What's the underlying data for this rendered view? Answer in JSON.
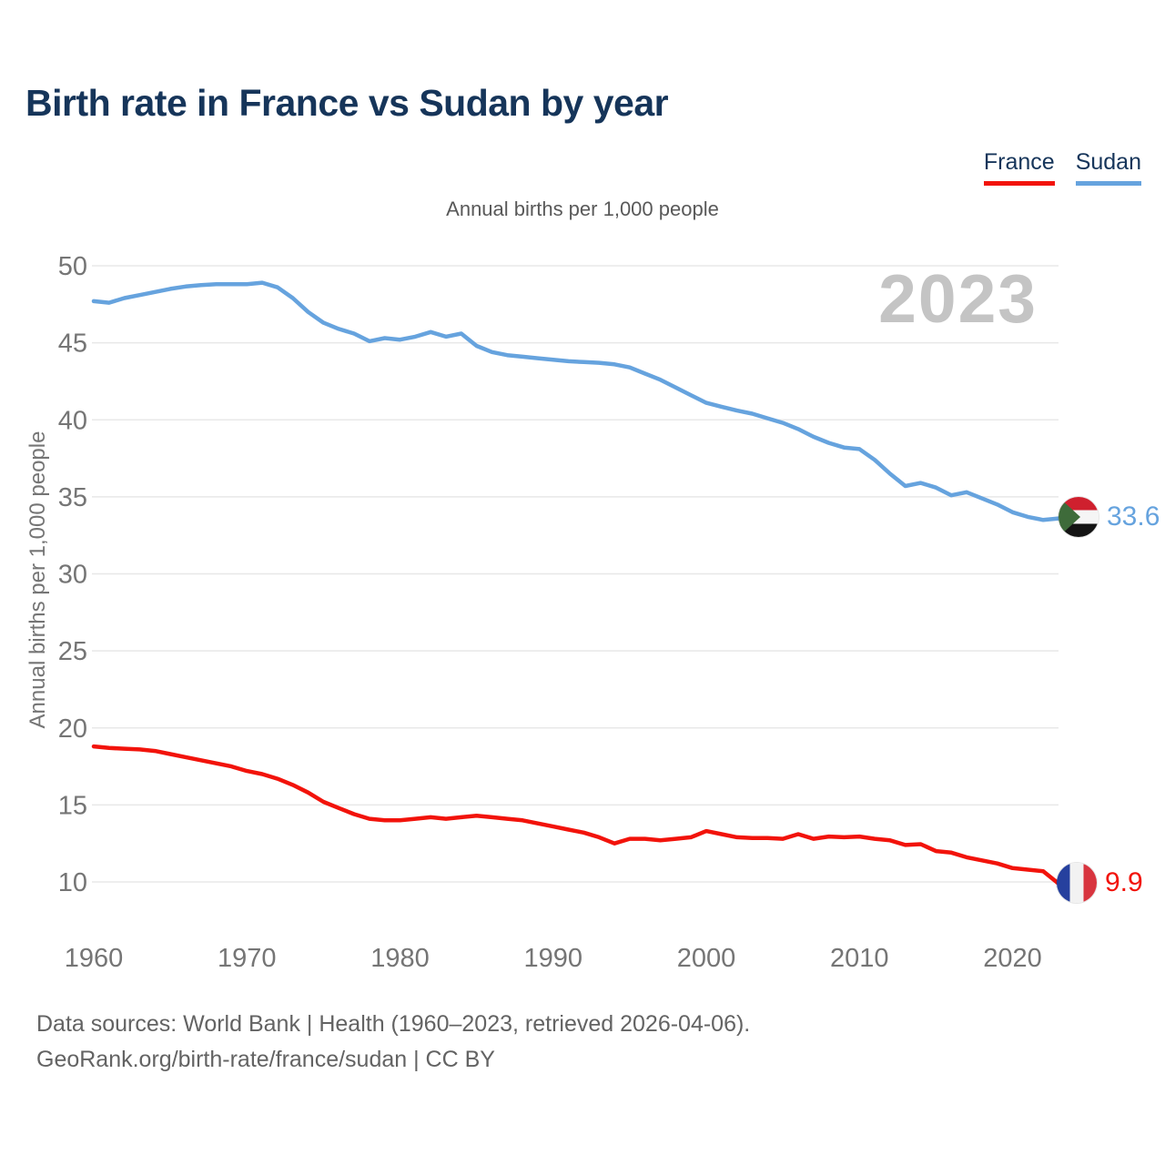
{
  "header": {
    "title": "Birth rate in France vs Sudan by year"
  },
  "legend": [
    {
      "label": "France",
      "color": "#f2130b"
    },
    {
      "label": "Sudan",
      "color": "#66a3de"
    }
  ],
  "subtitle": "Annual births per 1,000 people",
  "watermark": "2023",
  "colors": {
    "title_text": "#16355a",
    "axis_text": "#757575",
    "gridline": "#e8e8e8",
    "watermark": "#c4c4c4",
    "france_red": "#f2130b",
    "sudan_blue": "#66a3de"
  },
  "chart_data": {
    "type": "line",
    "title": "Birth rate in France vs Sudan by year",
    "subtitle": "Annual births per 1,000 people",
    "xlabel": "",
    "ylabel": "Annual births per 1,000 people",
    "xlim": [
      1960,
      2023
    ],
    "ylim": [
      10,
      50
    ],
    "grid": "horizontal",
    "legend_position": "top-right",
    "x_ticks": [
      1960,
      1970,
      1980,
      1990,
      2000,
      2010,
      2020
    ],
    "y_ticks": [
      10,
      15,
      20,
      25,
      30,
      35,
      40,
      45,
      50
    ],
    "x": [
      1960,
      1961,
      1962,
      1963,
      1964,
      1965,
      1966,
      1967,
      1968,
      1969,
      1970,
      1971,
      1972,
      1973,
      1974,
      1975,
      1976,
      1977,
      1978,
      1979,
      1980,
      1981,
      1982,
      1983,
      1984,
      1985,
      1986,
      1987,
      1988,
      1989,
      1990,
      1991,
      1992,
      1993,
      1994,
      1995,
      1996,
      1997,
      1998,
      1999,
      2000,
      2001,
      2002,
      2003,
      2004,
      2005,
      2006,
      2007,
      2008,
      2009,
      2010,
      2011,
      2012,
      2013,
      2014,
      2015,
      2016,
      2017,
      2018,
      2019,
      2020,
      2021,
      2022,
      2023
    ],
    "series": [
      {
        "name": "France",
        "color": "#f2130b",
        "end_label": "9.9",
        "end_year": 2023,
        "values": [
          18.8,
          18.7,
          18.65,
          18.6,
          18.5,
          18.3,
          18.1,
          17.9,
          17.7,
          17.5,
          17.2,
          17.0,
          16.7,
          16.3,
          15.8,
          15.2,
          14.8,
          14.4,
          14.1,
          14.0,
          14.0,
          14.1,
          14.2,
          14.1,
          14.2,
          14.3,
          14.2,
          14.1,
          14.0,
          13.8,
          13.6,
          13.4,
          13.2,
          12.9,
          12.5,
          12.8,
          12.8,
          12.7,
          12.8,
          12.9,
          13.3,
          13.1,
          12.9,
          12.85,
          12.85,
          12.8,
          13.1,
          12.8,
          12.95,
          12.9,
          12.95,
          12.8,
          12.7,
          12.4,
          12.45,
          12.0,
          11.9,
          11.6,
          11.4,
          11.2,
          10.9,
          10.8,
          10.7,
          9.9
        ]
      },
      {
        "name": "Sudan",
        "color": "#66a3de",
        "end_label": "33.6",
        "end_year": 2023,
        "values": [
          47.7,
          47.6,
          47.9,
          48.1,
          48.3,
          48.5,
          48.65,
          48.75,
          48.8,
          48.8,
          48.8,
          48.9,
          48.6,
          47.9,
          47.0,
          46.3,
          45.9,
          45.6,
          45.1,
          45.3,
          45.2,
          45.4,
          45.7,
          45.4,
          45.6,
          44.8,
          44.4,
          44.2,
          44.1,
          44.0,
          43.9,
          43.8,
          43.75,
          43.7,
          43.6,
          43.4,
          43.0,
          42.6,
          42.1,
          41.6,
          41.1,
          40.85,
          40.6,
          40.4,
          40.1,
          39.8,
          39.4,
          38.9,
          38.5,
          38.2,
          38.1,
          37.4,
          36.5,
          35.7,
          35.9,
          35.6,
          35.1,
          35.3,
          34.9,
          34.5,
          34.0,
          33.7,
          33.5,
          33.6
        ]
      }
    ]
  },
  "footer": {
    "line1": "Data sources: World Bank | Health (1960–2023, retrieved 2026-04-06).",
    "line2": "GeoRank.org/birth-rate/france/sudan | CC BY"
  }
}
